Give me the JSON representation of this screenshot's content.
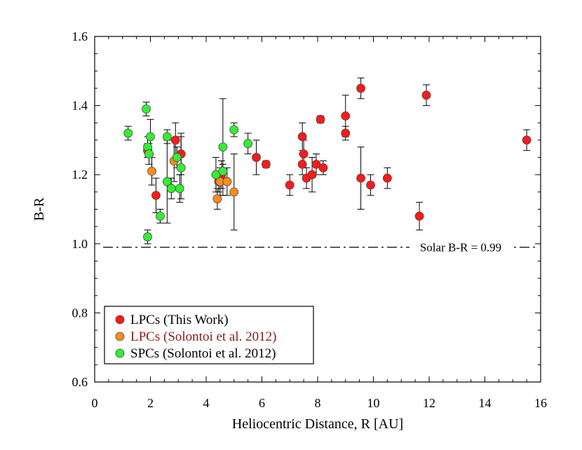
{
  "chart_data": {
    "type": "scatter",
    "xlabel": "Heliocentric Distance, R [AU]",
    "ylabel": "B-R",
    "xlim": [
      0,
      16
    ],
    "ylim": [
      0.6,
      1.6
    ],
    "xticks": [
      "0",
      "2",
      "4",
      "6",
      "8",
      "10",
      "12",
      "14",
      "16"
    ],
    "yticks": [
      "0.6",
      "0.8",
      "1.0",
      "1.2",
      "1.4",
      "1.6"
    ],
    "grid": false,
    "legend_position": "bottom-left",
    "reference_line": {
      "y": 0.99,
      "label": "Solar B-R = 0.99",
      "style": "dash-dot"
    },
    "series": [
      {
        "name": "LPCs (This Work)",
        "color": "#ff1a1a",
        "label_color": "#000000",
        "points": [
          {
            "x": 1.9,
            "y": 1.27,
            "err": 0.02
          },
          {
            "x": 2.2,
            "y": 1.14,
            "err": 0.05
          },
          {
            "x": 2.9,
            "y": 1.3,
            "err": 0.05
          },
          {
            "x": 3.1,
            "y": 1.26,
            "err": 0.06
          },
          {
            "x": 4.45,
            "y": 1.18,
            "err": 0.03
          },
          {
            "x": 4.55,
            "y": 1.2,
            "err": 0.04
          },
          {
            "x": 5.8,
            "y": 1.25,
            "err": 0.05
          },
          {
            "x": 6.15,
            "y": 1.23,
            "err": 0.01
          },
          {
            "x": 7.0,
            "y": 1.17,
            "err": 0.03
          },
          {
            "x": 7.45,
            "y": 1.31,
            "err": 0.04
          },
          {
            "x": 7.45,
            "y": 1.23,
            "err": 0.03
          },
          {
            "x": 7.5,
            "y": 1.26,
            "err": 0.04
          },
          {
            "x": 7.6,
            "y": 1.19,
            "err": 0.03
          },
          {
            "x": 7.8,
            "y": 1.2,
            "err": 0.05
          },
          {
            "x": 7.95,
            "y": 1.23,
            "err": 0.03
          },
          {
            "x": 8.1,
            "y": 1.36,
            "err": 0.01
          },
          {
            "x": 8.2,
            "y": 1.22,
            "err": 0.02
          },
          {
            "x": 9.0,
            "y": 1.37,
            "err": 0.06
          },
          {
            "x": 9.0,
            "y": 1.32,
            "err": 0.02
          },
          {
            "x": 9.55,
            "y": 1.45,
            "err": 0.03
          },
          {
            "x": 9.55,
            "y": 1.19,
            "err": 0.09
          },
          {
            "x": 9.9,
            "y": 1.17,
            "err": 0.03
          },
          {
            "x": 10.5,
            "y": 1.19,
            "err": 0.03
          },
          {
            "x": 11.65,
            "y": 1.08,
            "err": 0.04
          },
          {
            "x": 11.9,
            "y": 1.43,
            "err": 0.03
          },
          {
            "x": 15.5,
            "y": 1.3,
            "err": 0.03
          }
        ]
      },
      {
        "name": "LPCs (Solontoi et al. 2012)",
        "color": "#ff8c1a",
        "label_color": "#8b1a1a",
        "points": [
          {
            "x": 2.05,
            "y": 1.21,
            "err": 0.04
          },
          {
            "x": 2.85,
            "y": 1.24,
            "err": 0.06
          },
          {
            "x": 4.4,
            "y": 1.13,
            "err": 0.03
          },
          {
            "x": 4.5,
            "y": 1.18,
            "err": 0.04
          },
          {
            "x": 4.75,
            "y": 1.18,
            "err": 0.04
          },
          {
            "x": 5.0,
            "y": 1.15,
            "err": 0.11
          }
        ]
      },
      {
        "name": "SPCs (Solontoi et al. 2012)",
        "color": "#33ee33",
        "label_color": "#000000",
        "points": [
          {
            "x": 1.2,
            "y": 1.32,
            "err": 0.02
          },
          {
            "x": 1.85,
            "y": 1.39,
            "err": 0.02
          },
          {
            "x": 1.9,
            "y": 1.28,
            "err": 0.03
          },
          {
            "x": 1.95,
            "y": 1.26,
            "err": 0.03
          },
          {
            "x": 2.0,
            "y": 1.31,
            "err": 0.05
          },
          {
            "x": 1.9,
            "y": 1.02,
            "err": 0.02
          },
          {
            "x": 2.35,
            "y": 1.08,
            "err": 0.02
          },
          {
            "x": 2.6,
            "y": 1.31,
            "err": 0.02
          },
          {
            "x": 2.6,
            "y": 1.18,
            "err": 0.12
          },
          {
            "x": 2.75,
            "y": 1.16,
            "err": 0.03
          },
          {
            "x": 2.95,
            "y": 1.25,
            "err": 0.03
          },
          {
            "x": 3.05,
            "y": 1.16,
            "err": 0.04
          },
          {
            "x": 3.1,
            "y": 1.22,
            "err": 0.09
          },
          {
            "x": 4.35,
            "y": 1.2,
            "err": 0.05
          },
          {
            "x": 4.6,
            "y": 1.28,
            "err": 0.14
          },
          {
            "x": 4.6,
            "y": 1.21,
            "err": 0.02
          },
          {
            "x": 5.0,
            "y": 1.33,
            "err": 0.02
          },
          {
            "x": 5.5,
            "y": 1.29,
            "err": 0.03
          }
        ]
      }
    ]
  }
}
